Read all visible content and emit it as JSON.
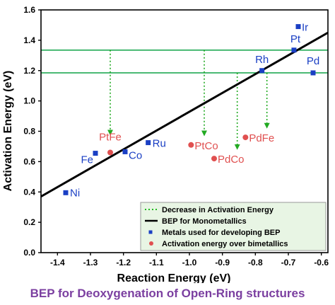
{
  "chart_data": {
    "type": "scatter",
    "xlabel": "Reaction Energy (eV)",
    "ylabel": "Activation Energy (eV)",
    "xlim": [
      -1.45,
      -0.58
    ],
    "ylim": [
      0.0,
      1.6
    ],
    "xticks": [
      -1.4,
      -1.3,
      -1.2,
      -1.1,
      -1.0,
      -0.9,
      -0.8,
      -0.7,
      -0.6
    ],
    "xtick_labels": [
      "-1.4",
      "-1.3",
      "-1.2",
      "-1.1",
      "-1.0",
      "-0.9",
      "-0.8",
      "-0.7",
      "-0.6"
    ],
    "yticks": [
      0.0,
      0.2,
      0.4,
      0.6,
      0.8,
      1.0,
      1.2,
      1.4,
      1.6
    ],
    "ytick_labels": [
      "0.0",
      "0.2",
      "0.4",
      "0.6",
      "0.8",
      "1.0",
      "1.2",
      "1.4",
      "1.6"
    ],
    "grid": false,
    "legend_position": "bottom-right",
    "legend": [
      {
        "label": "Decrease in Activation Energy",
        "style": "dotted-line",
        "color": "#22bb22"
      },
      {
        "label": "BEP for Monometallics",
        "style": "line",
        "color": "#000000"
      },
      {
        "label": "Metals used for developing BEP",
        "style": "square",
        "color": "#1a3fc4"
      },
      {
        "label": "Activation energy over bimetallics",
        "style": "circle",
        "color": "#e05050"
      }
    ],
    "bep_line": {
      "x": [
        -1.45,
        -0.58
      ],
      "y": [
        0.37,
        1.45
      ],
      "color": "#000000"
    },
    "hlines": [
      {
        "y": 1.335,
        "color": "#22aa55"
      },
      {
        "y": 1.185,
        "color": "#22aa55"
      }
    ],
    "arrows": [
      {
        "x": -1.24,
        "y_from": 1.335,
        "y_to": 0.78
      },
      {
        "x": -0.955,
        "y_from": 1.335,
        "y_to": 0.775
      },
      {
        "x": -0.855,
        "y_from": 1.185,
        "y_to": 0.685
      },
      {
        "x": -0.765,
        "y_from": 1.185,
        "y_to": 0.825
      }
    ],
    "series": [
      {
        "name": "Metals used for developing BEP",
        "marker": "square",
        "color": "#1a3fc4",
        "points": [
          {
            "label": "Ni",
            "x": -1.375,
            "y": 0.395
          },
          {
            "label": "Fe",
            "x": -1.285,
            "y": 0.655
          },
          {
            "label": "Co",
            "x": -1.195,
            "y": 0.665
          },
          {
            "label": "Ru",
            "x": -1.125,
            "y": 0.725
          },
          {
            "label": "Rh",
            "x": -0.78,
            "y": 1.2
          },
          {
            "label": "Pt",
            "x": -0.683,
            "y": 1.335
          },
          {
            "label": "Ir",
            "x": -0.67,
            "y": 1.49
          },
          {
            "label": "Pd",
            "x": -0.625,
            "y": 1.185
          }
        ]
      },
      {
        "name": "Activation energy over bimetallics",
        "marker": "circle",
        "color": "#e05050",
        "points": [
          {
            "label": "PtFe",
            "x": -1.24,
            "y": 0.66
          },
          {
            "label": "PtCo",
            "x": -0.995,
            "y": 0.71
          },
          {
            "label": "PdCo",
            "x": -0.925,
            "y": 0.62
          },
          {
            "label": "PdFe",
            "x": -0.83,
            "y": 0.76
          }
        ]
      }
    ]
  },
  "caption": "BEP for Deoxygenation of Open-Ring structures",
  "caption_color": "#7b3fa0"
}
